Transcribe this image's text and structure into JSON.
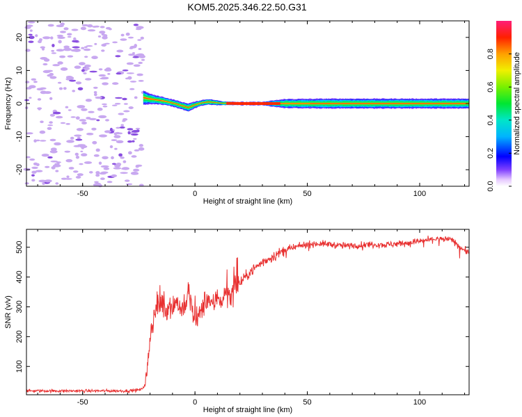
{
  "title": "KOM5.2025.346.22.50.G31",
  "colors": {
    "snr_line": "#e83030",
    "speckle": "#c8a8f0",
    "speckle_dark": "#8a4fe0",
    "frame": "#000000"
  },
  "colorbar": {
    "label": "Normalized spectral amplitude",
    "ticks": [
      "0.0",
      "0.2",
      "0.4",
      "0.6",
      "0.8"
    ],
    "tick_values": [
      0.0,
      0.2,
      0.4,
      0.6,
      0.8
    ],
    "range": [
      0,
      1
    ]
  },
  "chart_data": [
    {
      "type": "heatmap",
      "xlabel": "Height of straight line (km)",
      "ylabel": "Frequency (Hz)",
      "xlim": [
        -75,
        122
      ],
      "ylim": [
        -25,
        25
      ],
      "xticks": [
        "-50",
        "0",
        "50",
        "100"
      ],
      "xtick_values": [
        -50,
        0,
        50,
        100
      ],
      "yticks": [
        "20",
        "10",
        "0",
        "-10",
        "-20"
      ],
      "ytick_values": [
        20,
        10,
        0,
        -10,
        -20
      ],
      "noise_region_x": [
        -75,
        -23
      ],
      "signal_track": {
        "x": [
          -23,
          -21,
          -18,
          -15,
          -12,
          -9,
          -6,
          -3,
          0,
          3,
          6,
          9,
          12,
          20,
          30,
          40,
          60,
          80,
          100,
          122
        ],
        "center_freq": [
          1.8,
          1.5,
          1.2,
          0.9,
          0.5,
          0.0,
          -0.6,
          -1.2,
          -0.4,
          0.2,
          0.5,
          0.3,
          0.1,
          0.0,
          0.0,
          0.0,
          0.0,
          0.0,
          0.0,
          0.0
        ],
        "half_width": [
          1.8,
          1.4,
          1.1,
          1.0,
          0.9,
          0.9,
          0.9,
          1.0,
          0.8,
          0.7,
          0.7,
          0.6,
          0.5,
          0.4,
          0.4,
          1.1,
          1.2,
          1.2,
          1.2,
          1.2
        ]
      }
    },
    {
      "type": "line",
      "xlabel": "Height of straight line (km)",
      "ylabel": "SNR (v/v)",
      "xlim": [
        -75,
        122
      ],
      "ylim": [
        5,
        560
      ],
      "xticks": [
        "-50",
        "0",
        "50",
        "100"
      ],
      "xtick_values": [
        -50,
        0,
        50,
        100
      ],
      "yticks": [
        "500",
        "400",
        "300",
        "200",
        "100"
      ],
      "ytick_values": [
        500,
        400,
        300,
        200,
        100
      ],
      "series": [
        {
          "x": [
            -75,
            -60,
            -45,
            -30,
            -24,
            -22,
            -21,
            -20,
            -19,
            -18,
            -17,
            -16,
            -15,
            -14,
            -13,
            -12,
            -10,
            -8,
            -6,
            -4,
            -3,
            -2,
            -1,
            0,
            2,
            4,
            6,
            8,
            10,
            12,
            14,
            16,
            18,
            20,
            25,
            30,
            35,
            40,
            45,
            50,
            55,
            60,
            65,
            70,
            75,
            80,
            85,
            90,
            95,
            100,
            105,
            108,
            110,
            113,
            116,
            119,
            122
          ],
          "values": [
            18,
            18,
            18,
            18,
            22,
            40,
            100,
            200,
            240,
            270,
            300,
            290,
            320,
            300,
            280,
            310,
            300,
            320,
            290,
            300,
            360,
            320,
            280,
            250,
            270,
            310,
            330,
            300,
            340,
            320,
            350,
            330,
            370,
            380,
            420,
            450,
            470,
            490,
            500,
            510,
            512,
            510,
            505,
            505,
            508,
            510,
            508,
            512,
            515,
            520,
            525,
            530,
            525,
            528,
            515,
            495,
            480
          ]
        }
      ]
    }
  ]
}
